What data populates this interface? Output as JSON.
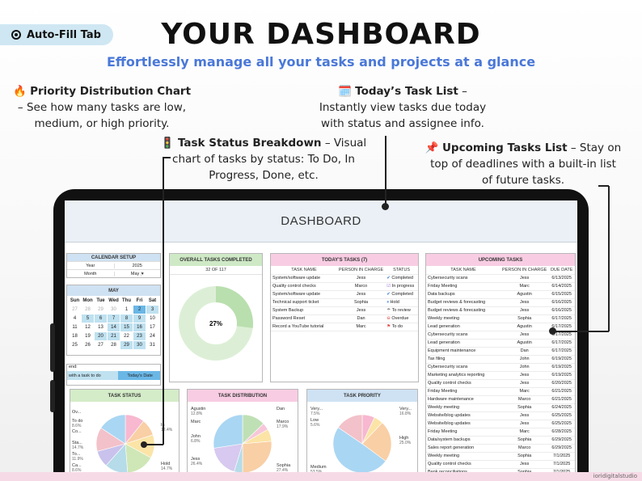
{
  "header": {
    "autofill": "Auto-Fill Tab",
    "title": "YOUR DASHBOARD",
    "subtitle": "Effortlessly manage all your tasks and projects at a glance"
  },
  "callouts": {
    "priority": {
      "emoji": "🔥",
      "title": "Priority Distribution Chart",
      "body1": "– See how many tasks are low,",
      "body2": "medium, or high priority."
    },
    "today": {
      "emoji": "🗓️",
      "title": "Today’s Task List",
      "dash": " –",
      "body1": "Instantly view tasks due today",
      "body2": "with status and assignee info."
    },
    "status": {
      "emoji": "🚦",
      "title": "Task Status Breakdown",
      "body0": " – Visual",
      "body1": "chart of tasks by status: To Do, In",
      "body2": "Progress, Done, etc."
    },
    "upcoming": {
      "emoji": "📌",
      "title": "Upcoming Tasks List",
      "body0": " – Stay on",
      "body1": "top of deadlines with a built-in list",
      "body2": "of future tasks."
    }
  },
  "dashboard": {
    "title": "DASHBOARD",
    "calendar_setup": {
      "title": "CALENDAR SETUP",
      "year_label": "Year",
      "year": "2025",
      "month_label": "Month",
      "month": "May"
    },
    "calendar": {
      "title": "MAY",
      "dow": [
        "Sun",
        "Mon",
        "Tue",
        "Wed",
        "Thu",
        "Fri",
        "Sat"
      ],
      "days": [
        "27",
        "28",
        "29",
        "30",
        "1",
        "2",
        "3",
        "4",
        "5",
        "6",
        "7",
        "8",
        "9",
        "10",
        "11",
        "12",
        "13",
        "14",
        "15",
        "16",
        "17",
        "18",
        "19",
        "20",
        "21",
        "22",
        "23",
        "24",
        "25",
        "26",
        "27",
        "28",
        "29",
        "30",
        "31"
      ],
      "muted": [
        0,
        1,
        2,
        3
      ],
      "highlight": [
        5,
        6,
        8,
        9,
        10,
        11,
        12,
        17,
        18,
        19,
        23,
        24,
        26,
        32,
        33
      ],
      "today": [
        5
      ]
    },
    "legend": {
      "label": "end:",
      "a": "with a task to do",
      "b": "Today's Date"
    },
    "overall": {
      "title": "OVERALL TASKS COMPLETED",
      "count": "32 OF 117",
      "pct": "27%",
      "fraction": 0.27
    },
    "today_tasks": {
      "title": "TODAY'S TASKS (7)",
      "headers": [
        "TASK NAME",
        "PERSON IN CHARGE",
        "STATUS"
      ],
      "rows": [
        [
          "System/software update",
          "Jess",
          "✔",
          "Completed"
        ],
        [
          "Quality control checks",
          "Marco",
          "☑",
          "In progress"
        ],
        [
          "System/software update",
          "Jess",
          "✔",
          "Completed"
        ],
        [
          "Technical support ticket",
          "Sophia",
          "⏸",
          "Hold"
        ],
        [
          "System Backup",
          "Jess",
          "☂",
          "To review"
        ],
        [
          "Password Reset",
          "Dan",
          "⊖",
          "Overdue"
        ],
        [
          "Record a YouTube tutorial",
          "Marc",
          "⚑",
          "To do"
        ]
      ]
    },
    "upcoming": {
      "title": "UPCOMING TASKS",
      "headers": [
        "TASK NAME",
        "PERSON IN CHARGE",
        "DUE DATE"
      ],
      "rows": [
        [
          "Cybersecurity scans",
          "Jess",
          "6/13/2025"
        ],
        [
          "Friday Meeting",
          "Marc",
          "6/14/2025"
        ],
        [
          "Data backups",
          "Agustin",
          "6/15/2025"
        ],
        [
          "Budget reviews & forecasting",
          "Jess",
          "6/16/2025"
        ],
        [
          "Budget reviews & forecasting",
          "Jess",
          "6/16/2025"
        ],
        [
          "Weekly meeting",
          "Sophia",
          "6/17/2025"
        ],
        [
          "Lead generation",
          "Agustin",
          "6/17/2025"
        ],
        [
          "Cybersecurity scans",
          "Jess",
          "6/17/2025"
        ],
        [
          "Lead generation",
          "Agustin",
          "6/17/2025"
        ],
        [
          "Equipment maintenance",
          "Dan",
          "6/17/2025"
        ],
        [
          "Tax filing",
          "John",
          "6/19/2025"
        ],
        [
          "Cybersecurity scans",
          "John",
          "6/19/2025"
        ],
        [
          "Marketing analytics reporting",
          "Jess",
          "6/19/2025"
        ],
        [
          "Quality control checks",
          "Jess",
          "6/20/2025"
        ],
        [
          "Friday Meeting",
          "Marc",
          "6/21/2025"
        ],
        [
          "Hardware maintenance",
          "Marco",
          "6/21/2025"
        ],
        [
          "Weekly meeting",
          "Sophia",
          "6/24/2025"
        ],
        [
          "Website/blog updates",
          "Jess",
          "6/25/2025"
        ],
        [
          "Website/blog updates",
          "Jess",
          "6/25/2025"
        ],
        [
          "Friday Meeting",
          "Marc",
          "6/28/2025"
        ],
        [
          "Data/system backups",
          "Sophia",
          "6/29/2025"
        ],
        [
          "Sales report generation",
          "Marco",
          "6/29/2025"
        ],
        [
          "Weekly meeting",
          "Sophia",
          "7/1/2025"
        ],
        [
          "Quality control checks",
          "Jess",
          "7/1/2025"
        ],
        [
          "Bank reconciliations",
          "Sophia",
          "7/1/2025"
        ]
      ]
    },
    "task_status": {
      "title": "TASK STATUS",
      "labels": [
        "Ov...",
        "To do",
        "Co...",
        "Sta...",
        "To...",
        "Ca...",
        "In",
        "Hold"
      ],
      "values": [
        "",
        "8.6%",
        "",
        "14.7%",
        "11.9%",
        "8.6%",
        "12.4%",
        "14.7%"
      ]
    },
    "task_distribution": {
      "title": "TASK DISTRIBUTION",
      "labels": [
        "Agustin",
        "Marc",
        "John",
        "Jess",
        "Dan",
        "Marco",
        "Sophia"
      ],
      "values": [
        "12.8%",
        "",
        "6.8%",
        "26.4%",
        "",
        "17.9%",
        "27.4%"
      ]
    },
    "task_priority": {
      "title": "TASK PRIORITY",
      "labels": [
        "Very...",
        "Low",
        "High",
        "Medium",
        "Very..."
      ],
      "values": [
        "7.5%",
        "5.6%",
        "25.0%",
        "53.5%",
        "16.8%"
      ]
    }
  },
  "footer": "ioridigitalstudio",
  "chart_data": [
    {
      "type": "pie",
      "title": "OVERALL TASKS COMPLETED",
      "categories": [
        "Completed",
        "Remaining"
      ],
      "values": [
        27,
        73
      ]
    },
    {
      "type": "pie",
      "title": "TASK STATUS",
      "categories": [
        "Ov...",
        "To do",
        "Co...",
        "Sta...",
        "To...",
        "Ca...",
        "In",
        "Hold"
      ],
      "values": [
        10,
        8.6,
        12,
        14.7,
        11.9,
        8.6,
        12.4,
        14.7
      ]
    },
    {
      "type": "pie",
      "title": "TASK DISTRIBUTION",
      "categories": [
        "Agustin",
        "Marc",
        "John",
        "Jess",
        "Dan",
        "Marco",
        "Sophia"
      ],
      "values": [
        12.8,
        4,
        6.8,
        26.4,
        4.7,
        17.9,
        27.4
      ]
    },
    {
      "type": "pie",
      "title": "TASK PRIORITY",
      "categories": [
        "Very...",
        "Low",
        "High",
        "Medium",
        "Very..."
      ],
      "values": [
        7.5,
        5.6,
        25.0,
        53.5,
        16.8
      ]
    }
  ]
}
